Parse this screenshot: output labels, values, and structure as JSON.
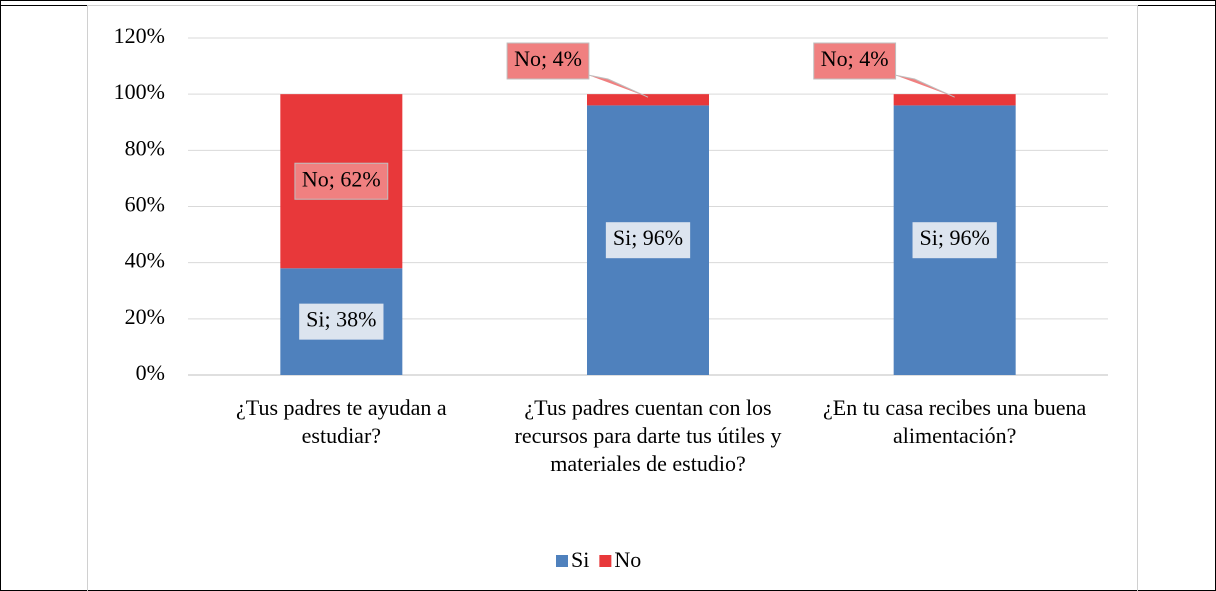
{
  "chart_data": {
    "type": "stacked_bar",
    "categories": [
      "¿Tus padres te ayudan a estudiar?",
      "¿Tus padres cuentan con los recursos para darte tus útiles y materiales de estudio?",
      "¿En tu casa recibes una buena alimentación?"
    ],
    "series": [
      {
        "name": "Si",
        "color": "#4f81bd",
        "values": [
          38,
          96,
          96
        ],
        "value_labels": [
          "Si; 38%",
          "Si; 96%",
          "Si; 96%"
        ]
      },
      {
        "name": "No",
        "color": "#e8383a",
        "values": [
          62,
          4,
          4
        ],
        "value_labels": [
          "No; 62%",
          "No; 4%",
          "No; 4%"
        ]
      }
    ],
    "ylim": [
      0,
      120
    ],
    "yticks": [
      {
        "value": 0,
        "label": "0%"
      },
      {
        "value": 20,
        "label": "20%"
      },
      {
        "value": 40,
        "label": "40%"
      },
      {
        "value": 60,
        "label": "60%"
      },
      {
        "value": 80,
        "label": "80%"
      },
      {
        "value": 100,
        "label": "100%"
      },
      {
        "value": 120,
        "label": "120%"
      }
    ],
    "grid": true,
    "legend": "bottom"
  }
}
